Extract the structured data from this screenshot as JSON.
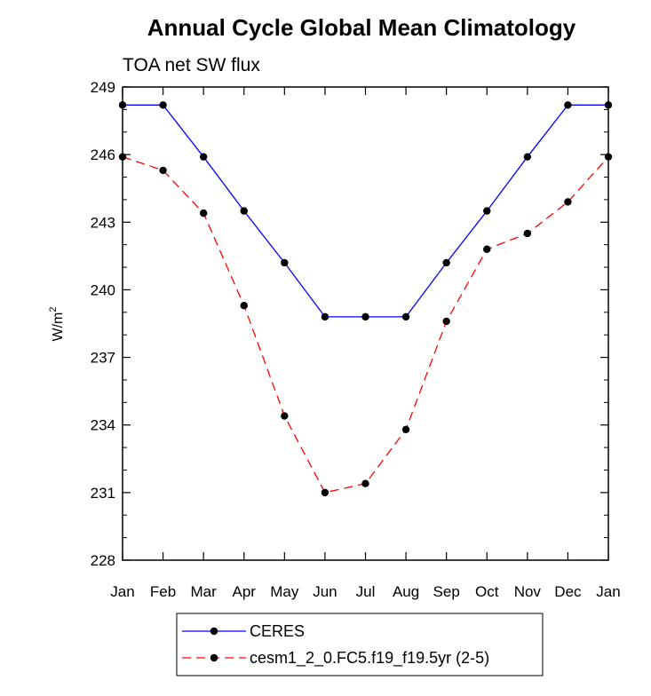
{
  "chart_data": {
    "type": "line",
    "title": "Annual Cycle Global Mean Climatology",
    "subtitle": "TOA net SW flux",
    "ylabel": "W/m",
    "ylabel_superscript": "2",
    "xlabel": "",
    "x": [
      "Jan",
      "Feb",
      "Mar",
      "Apr",
      "May",
      "Jun",
      "Jul",
      "Aug",
      "Sep",
      "Oct",
      "Nov",
      "Dec",
      "Jan"
    ],
    "ylim": [
      228,
      249
    ],
    "yticks": [
      "228",
      "231",
      "234",
      "237",
      "240",
      "243",
      "246",
      "249"
    ],
    "grid": false,
    "legend_position": "bottom",
    "series": [
      {
        "name": "CERES",
        "color": "#0000ff",
        "dash": "solid",
        "marker": "filled-circle",
        "values": [
          248.2,
          248.2,
          245.9,
          243.5,
          241.2,
          238.8,
          238.8,
          238.8,
          241.2,
          243.5,
          245.9,
          248.2,
          248.2
        ]
      },
      {
        "name": "cesm1_2_0.FC5.f19_f19.5yr (2-5)",
        "color": "#ff0000",
        "dash": "dashed",
        "marker": "filled-circle",
        "values": [
          245.9,
          245.3,
          243.4,
          239.3,
          234.4,
          231.0,
          231.4,
          233.8,
          238.6,
          241.8,
          242.5,
          243.9,
          245.9
        ]
      }
    ]
  }
}
